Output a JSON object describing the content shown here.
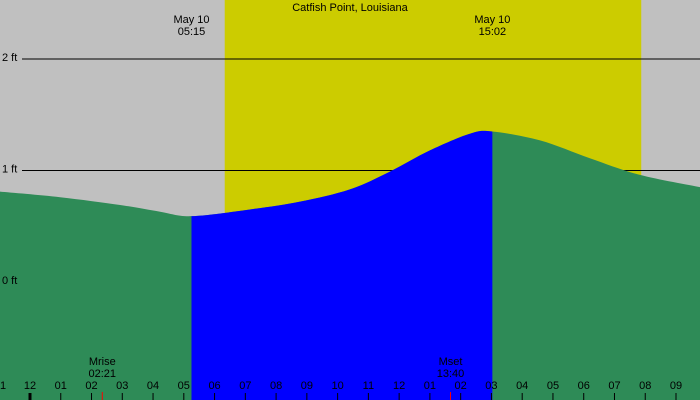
{
  "chart_data": {
    "type": "area",
    "title": "Catfish Point, Louisiana",
    "background": "#c0c0c0",
    "daylight": {
      "color": "#cccc00",
      "x": [
        6.33,
        19.87
      ]
    },
    "x": [
      -0.98,
      0.98,
      2.93,
      4.23,
      5.25,
      7.15,
      8.78,
      10.4,
      11.7,
      13.0,
      14.3,
      15.03,
      16.58,
      18.2,
      19.83,
      21.78
    ],
    "series": [
      {
        "color": "#2e8b57",
        "rising_color": "#0000ff",
        "values": [
          0.81,
          0.76,
          0.69,
          0.63,
          0.59,
          0.65,
          0.72,
          0.83,
          0.99,
          1.18,
          1.33,
          1.35,
          1.27,
          1.11,
          0.96,
          0.85
        ]
      }
    ],
    "events": [
      {
        "date": "May 10",
        "time": "05:15",
        "x": 5.25
      },
      {
        "date": "May 10",
        "time": "15:02",
        "x": 15.03
      }
    ],
    "moon": [
      {
        "name": "Mrise",
        "time": "02:21",
        "x": 2.35
      },
      {
        "name": "Mset",
        "time": "13:40",
        "x": 13.67
      }
    ],
    "xlim": [
      -0.975,
      21.78
    ],
    "ylim": [
      -1.06,
      2.53
    ],
    "yticks": [
      {
        "value": 0,
        "label": "0 ft"
      },
      {
        "value": 1,
        "label": "1 ft"
      },
      {
        "value": 2,
        "label": "2 ft"
      }
    ],
    "xticks": [
      {
        "value": -1,
        "label": "1"
      },
      {
        "value": 0,
        "label": "12"
      },
      {
        "value": 1,
        "label": "01"
      },
      {
        "value": 2,
        "label": "02"
      },
      {
        "value": 3,
        "label": "03"
      },
      {
        "value": 4,
        "label": "04"
      },
      {
        "value": 5,
        "label": "05"
      },
      {
        "value": 6,
        "label": "06"
      },
      {
        "value": 7,
        "label": "07"
      },
      {
        "value": 8,
        "label": "08"
      },
      {
        "value": 9,
        "label": "09"
      },
      10,
      11,
      12,
      {
        "value": 13,
        "label": "01"
      },
      {
        "value": 14,
        "label": "02"
      },
      {
        "value": 15,
        "label": "03"
      },
      {
        "value": 16,
        "label": "04"
      },
      {
        "value": 17,
        "label": "05"
      },
      {
        "value": 18,
        "label": "06"
      },
      {
        "value": 19,
        "label": "07"
      },
      {
        "value": 20,
        "label": "08"
      },
      {
        "value": 21,
        "label": "09"
      }
    ],
    "grid": true
  }
}
